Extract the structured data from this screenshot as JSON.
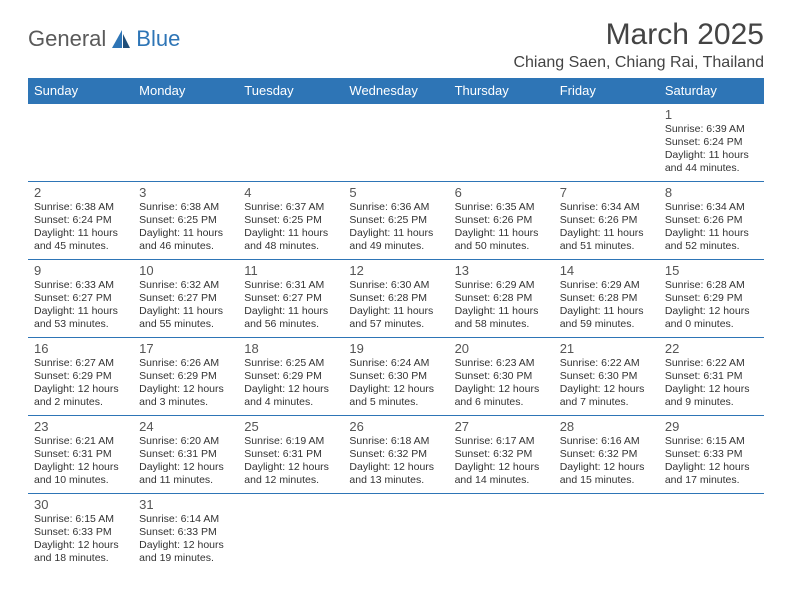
{
  "brand": {
    "part1": "General",
    "part2": "Blue"
  },
  "title": {
    "month": "March 2025",
    "location": "Chiang Saen, Chiang Rai, Thailand"
  },
  "colors": {
    "header_bg": "#2e75b6",
    "header_text": "#ffffff",
    "border": "#2e75b6"
  },
  "weekdays": [
    "Sunday",
    "Monday",
    "Tuesday",
    "Wednesday",
    "Thursday",
    "Friday",
    "Saturday"
  ],
  "weeks": [
    [
      null,
      null,
      null,
      null,
      null,
      null,
      {
        "d": "1",
        "sunrise": "Sunrise: 6:39 AM",
        "sunset": "Sunset: 6:24 PM",
        "daylight": "Daylight: 11 hours and 44 minutes."
      }
    ],
    [
      {
        "d": "2",
        "sunrise": "Sunrise: 6:38 AM",
        "sunset": "Sunset: 6:24 PM",
        "daylight": "Daylight: 11 hours and 45 minutes."
      },
      {
        "d": "3",
        "sunrise": "Sunrise: 6:38 AM",
        "sunset": "Sunset: 6:25 PM",
        "daylight": "Daylight: 11 hours and 46 minutes."
      },
      {
        "d": "4",
        "sunrise": "Sunrise: 6:37 AM",
        "sunset": "Sunset: 6:25 PM",
        "daylight": "Daylight: 11 hours and 48 minutes."
      },
      {
        "d": "5",
        "sunrise": "Sunrise: 6:36 AM",
        "sunset": "Sunset: 6:25 PM",
        "daylight": "Daylight: 11 hours and 49 minutes."
      },
      {
        "d": "6",
        "sunrise": "Sunrise: 6:35 AM",
        "sunset": "Sunset: 6:26 PM",
        "daylight": "Daylight: 11 hours and 50 minutes."
      },
      {
        "d": "7",
        "sunrise": "Sunrise: 6:34 AM",
        "sunset": "Sunset: 6:26 PM",
        "daylight": "Daylight: 11 hours and 51 minutes."
      },
      {
        "d": "8",
        "sunrise": "Sunrise: 6:34 AM",
        "sunset": "Sunset: 6:26 PM",
        "daylight": "Daylight: 11 hours and 52 minutes."
      }
    ],
    [
      {
        "d": "9",
        "sunrise": "Sunrise: 6:33 AM",
        "sunset": "Sunset: 6:27 PM",
        "daylight": "Daylight: 11 hours and 53 minutes."
      },
      {
        "d": "10",
        "sunrise": "Sunrise: 6:32 AM",
        "sunset": "Sunset: 6:27 PM",
        "daylight": "Daylight: 11 hours and 55 minutes."
      },
      {
        "d": "11",
        "sunrise": "Sunrise: 6:31 AM",
        "sunset": "Sunset: 6:27 PM",
        "daylight": "Daylight: 11 hours and 56 minutes."
      },
      {
        "d": "12",
        "sunrise": "Sunrise: 6:30 AM",
        "sunset": "Sunset: 6:28 PM",
        "daylight": "Daylight: 11 hours and 57 minutes."
      },
      {
        "d": "13",
        "sunrise": "Sunrise: 6:29 AM",
        "sunset": "Sunset: 6:28 PM",
        "daylight": "Daylight: 11 hours and 58 minutes."
      },
      {
        "d": "14",
        "sunrise": "Sunrise: 6:29 AM",
        "sunset": "Sunset: 6:28 PM",
        "daylight": "Daylight: 11 hours and 59 minutes."
      },
      {
        "d": "15",
        "sunrise": "Sunrise: 6:28 AM",
        "sunset": "Sunset: 6:29 PM",
        "daylight": "Daylight: 12 hours and 0 minutes."
      }
    ],
    [
      {
        "d": "16",
        "sunrise": "Sunrise: 6:27 AM",
        "sunset": "Sunset: 6:29 PM",
        "daylight": "Daylight: 12 hours and 2 minutes."
      },
      {
        "d": "17",
        "sunrise": "Sunrise: 6:26 AM",
        "sunset": "Sunset: 6:29 PM",
        "daylight": "Daylight: 12 hours and 3 minutes."
      },
      {
        "d": "18",
        "sunrise": "Sunrise: 6:25 AM",
        "sunset": "Sunset: 6:29 PM",
        "daylight": "Daylight: 12 hours and 4 minutes."
      },
      {
        "d": "19",
        "sunrise": "Sunrise: 6:24 AM",
        "sunset": "Sunset: 6:30 PM",
        "daylight": "Daylight: 12 hours and 5 minutes."
      },
      {
        "d": "20",
        "sunrise": "Sunrise: 6:23 AM",
        "sunset": "Sunset: 6:30 PM",
        "daylight": "Daylight: 12 hours and 6 minutes."
      },
      {
        "d": "21",
        "sunrise": "Sunrise: 6:22 AM",
        "sunset": "Sunset: 6:30 PM",
        "daylight": "Daylight: 12 hours and 7 minutes."
      },
      {
        "d": "22",
        "sunrise": "Sunrise: 6:22 AM",
        "sunset": "Sunset: 6:31 PM",
        "daylight": "Daylight: 12 hours and 9 minutes."
      }
    ],
    [
      {
        "d": "23",
        "sunrise": "Sunrise: 6:21 AM",
        "sunset": "Sunset: 6:31 PM",
        "daylight": "Daylight: 12 hours and 10 minutes."
      },
      {
        "d": "24",
        "sunrise": "Sunrise: 6:20 AM",
        "sunset": "Sunset: 6:31 PM",
        "daylight": "Daylight: 12 hours and 11 minutes."
      },
      {
        "d": "25",
        "sunrise": "Sunrise: 6:19 AM",
        "sunset": "Sunset: 6:31 PM",
        "daylight": "Daylight: 12 hours and 12 minutes."
      },
      {
        "d": "26",
        "sunrise": "Sunrise: 6:18 AM",
        "sunset": "Sunset: 6:32 PM",
        "daylight": "Daylight: 12 hours and 13 minutes."
      },
      {
        "d": "27",
        "sunrise": "Sunrise: 6:17 AM",
        "sunset": "Sunset: 6:32 PM",
        "daylight": "Daylight: 12 hours and 14 minutes."
      },
      {
        "d": "28",
        "sunrise": "Sunrise: 6:16 AM",
        "sunset": "Sunset: 6:32 PM",
        "daylight": "Daylight: 12 hours and 15 minutes."
      },
      {
        "d": "29",
        "sunrise": "Sunrise: 6:15 AM",
        "sunset": "Sunset: 6:33 PM",
        "daylight": "Daylight: 12 hours and 17 minutes."
      }
    ],
    [
      {
        "d": "30",
        "sunrise": "Sunrise: 6:15 AM",
        "sunset": "Sunset: 6:33 PM",
        "daylight": "Daylight: 12 hours and 18 minutes."
      },
      {
        "d": "31",
        "sunrise": "Sunrise: 6:14 AM",
        "sunset": "Sunset: 6:33 PM",
        "daylight": "Daylight: 12 hours and 19 minutes."
      },
      null,
      null,
      null,
      null,
      null
    ]
  ]
}
